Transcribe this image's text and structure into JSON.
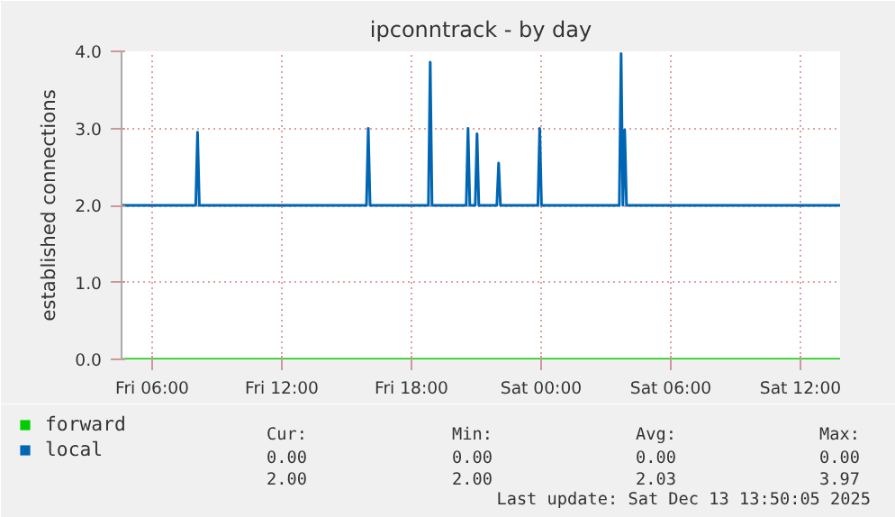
{
  "chart_data": {
    "type": "line",
    "title": "ipconntrack - by day",
    "ylabel": "established connections",
    "xlim": [
      "2025-12-12T04:35",
      "2025-12-13T13:50"
    ],
    "xticks": [
      {
        "value": "2025-12-12T06:00",
        "label": "Fri 06:00"
      },
      {
        "value": "2025-12-12T12:00",
        "label": "Fri 12:00"
      },
      {
        "value": "2025-12-12T18:00",
        "label": "Fri 18:00"
      },
      {
        "value": "2025-12-13T00:00",
        "label": "Sat 00:00"
      },
      {
        "value": "2025-12-13T06:00",
        "label": "Sat 06:00"
      },
      {
        "value": "2025-12-13T12:00",
        "label": "Sat 12:00"
      }
    ],
    "ylim": [
      0,
      4
    ],
    "yticks": [
      {
        "value": 0,
        "label": "0.0"
      },
      {
        "value": 1,
        "label": "1.0"
      },
      {
        "value": 2,
        "label": "2.0"
      },
      {
        "value": 3,
        "label": "3.0"
      },
      {
        "value": 4,
        "label": "4.0"
      }
    ],
    "grid": true,
    "legend": "bottom left",
    "series": [
      {
        "name": "forward",
        "color": "#00cc00",
        "x": [
          "2025-12-12T04:35",
          "2025-12-13T13:50"
        ],
        "values": [
          0,
          0
        ]
      },
      {
        "name": "local",
        "color": "#0066b3",
        "x": [
          "2025-12-12T04:35",
          "2025-12-12T08:01",
          "2025-12-12T08:06",
          "2025-12-12T08:11",
          "2025-12-12T15:55",
          "2025-12-12T16:00",
          "2025-12-12T16:05",
          "2025-12-12T18:47",
          "2025-12-12T18:52",
          "2025-12-12T18:57",
          "2025-12-12T20:32",
          "2025-12-12T20:37",
          "2025-12-12T20:42",
          "2025-12-12T20:57",
          "2025-12-12T21:02",
          "2025-12-12T21:07",
          "2025-12-12T21:57",
          "2025-12-12T22:02",
          "2025-12-12T22:07",
          "2025-12-12T23:51",
          "2025-12-12T23:56",
          "2025-12-13T00:01",
          "2025-12-13T03:37",
          "2025-12-13T03:42",
          "2025-12-13T03:47",
          "2025-12-13T03:52",
          "2025-12-13T03:57",
          "2025-12-13T13:50"
        ],
        "values": [
          2,
          2,
          2.95,
          2,
          2,
          3.0,
          2,
          2,
          3.86,
          2,
          2,
          3.0,
          2,
          2,
          2.93,
          2,
          2,
          2.55,
          2,
          2,
          3.0,
          2,
          2,
          3.97,
          2,
          2.98,
          2,
          2
        ]
      }
    ],
    "annotations": [
      "Cur:",
      "Min:",
      "Avg:",
      "Max:",
      "0.00",
      "0.00",
      "0.00",
      "0.00",
      "2.00",
      "2.00",
      "2.03",
      "3.97",
      "Last update: Sat Dec 13 13:50:05 2025"
    ]
  }
}
